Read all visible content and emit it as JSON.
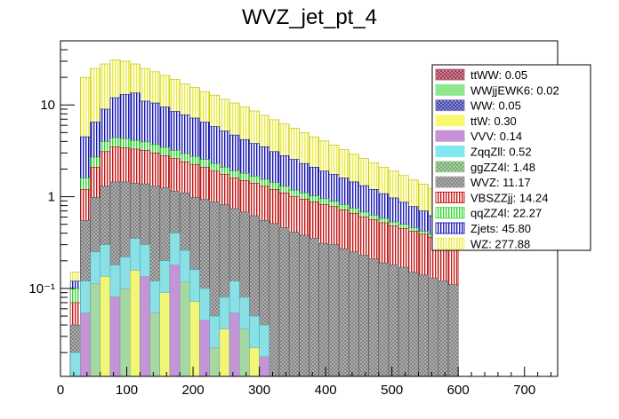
{
  "chart_data": {
    "type": "bar",
    "stacked": true,
    "title": "WVZ_jet_pt_4",
    "xlabel": "",
    "ylabel": "",
    "xlim": [
      0,
      750
    ],
    "ylim": [
      0.011,
      50
    ],
    "ylog": true,
    "bin_width": 15,
    "x_start": 15,
    "x_ticks": [
      "0",
      "100",
      "200",
      "300",
      "400",
      "500",
      "600",
      "700"
    ],
    "y_ticks": [
      {
        "value": 10,
        "label": "10"
      },
      {
        "value": 1,
        "label": "1"
      },
      {
        "value": 0.1,
        "label": "10⁻¹"
      }
    ],
    "legend_position": "top-right",
    "stack_totals": {
      "WVZ": [
        0.04,
        0.55,
        0.98,
        1.3,
        1.45,
        1.45,
        1.4,
        1.38,
        1.3,
        1.25,
        1.15,
        1.1,
        0.98,
        0.93,
        0.88,
        0.82,
        0.74,
        0.68,
        0.62,
        0.55,
        0.51,
        0.46,
        0.41,
        0.38,
        0.35,
        0.31,
        0.3,
        0.27,
        0.25,
        0.23,
        0.21,
        0.19,
        0.18,
        0.17,
        0.15,
        0.14,
        0.13,
        0.12,
        0.11
      ],
      "VBSZZjj": [
        0.07,
        1.2,
        2.1,
        3.1,
        3.5,
        3.4,
        3.3,
        3.2,
        3.0,
        2.8,
        2.6,
        2.4,
        2.25,
        2.1,
        1.9,
        1.75,
        1.6,
        1.5,
        1.4,
        1.3,
        1.2,
        1.1,
        1.0,
        0.94,
        0.88,
        0.82,
        0.78,
        0.72,
        0.66,
        0.6,
        0.56,
        0.52,
        0.48,
        0.45,
        0.42,
        0.39,
        0.36,
        0.33,
        0.3
      ],
      "qqZZ4l": [
        0.1,
        1.6,
        2.7,
        4.0,
        4.4,
        4.3,
        4.1,
        3.95,
        3.7,
        3.45,
        3.2,
        2.95,
        2.75,
        2.55,
        2.3,
        2.1,
        1.92,
        1.8,
        1.68,
        1.55,
        1.43,
        1.3,
        1.18,
        1.1,
        1.02,
        0.95,
        0.89,
        0.82,
        0.75,
        0.68,
        0.63,
        0.58,
        0.53,
        0.5,
        0.46,
        0.42,
        0.39,
        0.36,
        0.32
      ],
      "Zjets": [
        0.12,
        4.5,
        6.5,
        9.0,
        12.0,
        13.0,
        13.5,
        11.0,
        10.5,
        9.5,
        8.5,
        7.8,
        7.2,
        6.5,
        5.8,
        5.2,
        4.7,
        4.2,
        3.8,
        3.5,
        3.1,
        2.8,
        2.55,
        2.3,
        2.1,
        1.9,
        1.75,
        1.6,
        1.45,
        1.32,
        1.2,
        1.08,
        0.97,
        0.87,
        0.78,
        0.7,
        0.62,
        0.55,
        0.48
      ],
      "WZ": [
        0.15,
        20.0,
        25.0,
        28.0,
        31.0,
        30.0,
        28.0,
        25.0,
        23.0,
        21.0,
        19.0,
        17.0,
        15.5,
        14.0,
        12.8,
        11.5,
        10.5,
        9.5,
        8.6,
        7.7,
        6.9,
        6.2,
        5.6,
        5.0,
        4.5,
        4.05,
        3.65,
        3.25,
        2.9,
        2.6,
        2.35,
        2.1,
        1.9,
        1.7,
        1.52,
        1.37,
        1.22,
        1.1,
        0.98
      ]
    },
    "legend": [
      {
        "name": "ttWW",
        "label": "ttWW: 0.05",
        "color": "#c06a80",
        "pattern": "cross"
      },
      {
        "name": "WWjjEWK6",
        "label": "WWjjEWK6: 0.02",
        "color": "#8ee68e",
        "pattern": "solid"
      },
      {
        "name": "WW",
        "label": "WW: 0.05",
        "color": "#8080c8",
        "pattern": "cross"
      },
      {
        "name": "ttW",
        "label": "ttW: 0.30",
        "color": "#f8f880",
        "pattern": "solid"
      },
      {
        "name": "VVV",
        "label": "VVV: 0.14",
        "color": "#c890d8",
        "pattern": "solid"
      },
      {
        "name": "ZqqZll",
        "label": "ZqqZll: 0.52",
        "color": "#80e8ee",
        "pattern": "solid"
      },
      {
        "name": "ggZZ4l",
        "label": "ggZZ4l: 1.48",
        "color": "#a8d8a0",
        "pattern": "cross"
      },
      {
        "name": "WVZ",
        "label": "WVZ: 11.17",
        "color": "#a8a8a8",
        "pattern": "cross"
      },
      {
        "name": "VBSZZjj",
        "label": "VBSZZjj: 14.24",
        "color": "#d02020",
        "pattern": "vert"
      },
      {
        "name": "qqZZ4l",
        "label": "qqZZ4l: 22.27",
        "color": "#40e040",
        "pattern": "vert"
      },
      {
        "name": "Zjets",
        "label": "Zjets: 45.80",
        "color": "#2020c0",
        "pattern": "vert"
      },
      {
        "name": "WZ",
        "label": "WZ: 277.88",
        "color": "#f0f060",
        "pattern": "vert"
      }
    ]
  }
}
